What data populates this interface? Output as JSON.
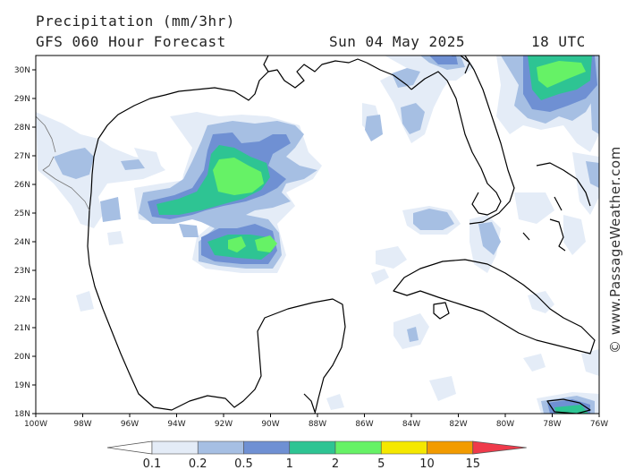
{
  "header": {
    "title": "Precipitation (mm/3hr)",
    "model": "GFS 060 Hour Forecast",
    "date": "Sun 04 May 2025",
    "time": "18 UTC"
  },
  "axes": {
    "lat_labels": [
      "30N",
      "29N",
      "28N",
      "27N",
      "26N",
      "25N",
      "24N",
      "23N",
      "22N",
      "21N",
      "20N",
      "19N",
      "18N"
    ],
    "lon_labels": [
      "100W",
      "98W",
      "96W",
      "94W",
      "92W",
      "90W",
      "88W",
      "86W",
      "84W",
      "82W",
      "80W",
      "78W",
      "76W"
    ]
  },
  "watermark": "© www.PassageWeather.com",
  "legend": {
    "labels": [
      "0.1",
      "0.2",
      "0.5",
      "1",
      "2",
      "5",
      "10",
      "15"
    ],
    "colors": [
      "#ffffff",
      "#e4ecf7",
      "#a6bfe3",
      "#6f90d3",
      "#2ec493",
      "#66f266",
      "#f5e800",
      "#f29b00",
      "#ef3a4a"
    ]
  },
  "colors": {
    "light": "#e4ecf7",
    "pale_blue": "#a6bfe3",
    "blue": "#6f90d3",
    "teal": "#2ec493",
    "green": "#66f266"
  }
}
